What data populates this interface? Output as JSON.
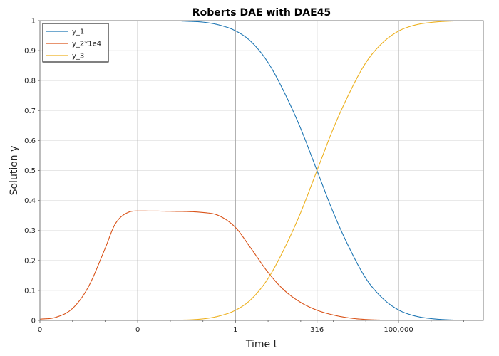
{
  "chart_data": {
    "type": "line",
    "title": "Roberts DAE with DAE45",
    "xlabel": "Time t",
    "ylabel": "Solution y",
    "x_scale": "log",
    "xlim": [
      1e-06,
      40000000
    ],
    "ylim": [
      0,
      1
    ],
    "x_ticks": [
      {
        "value": 1e-06,
        "label": "0"
      },
      {
        "value": 0.001,
        "label": "0"
      },
      {
        "value": 1,
        "label": "1"
      },
      {
        "value": 316,
        "label": "316"
      },
      {
        "value": 100000,
        "label": "100,000"
      }
    ],
    "y_ticks": [
      {
        "value": 0,
        "label": "0"
      },
      {
        "value": 0.1,
        "label": "0.1"
      },
      {
        "value": 0.2,
        "label": "0.2"
      },
      {
        "value": 0.3,
        "label": "0.3"
      },
      {
        "value": 0.4,
        "label": "0.4"
      },
      {
        "value": 0.5,
        "label": "0.5"
      },
      {
        "value": 0.6,
        "label": "0.6"
      },
      {
        "value": 0.7,
        "label": "0.7"
      },
      {
        "value": 0.8,
        "label": "0.8"
      },
      {
        "value": 0.9,
        "label": "0.9"
      },
      {
        "value": 1,
        "label": "1"
      }
    ],
    "grid": true,
    "legend_position": "top-left",
    "series": [
      {
        "name": "y_1",
        "color": "#1f77b4",
        "x": [
          1e-06,
          1e-05,
          0.0001,
          0.001,
          0.01,
          0.03,
          0.1,
          0.3,
          1,
          3,
          10,
          31.6,
          100,
          316,
          1000,
          3162,
          10000,
          31623,
          100000,
          316228,
          1000000,
          3162278,
          10000000,
          40000000
        ],
        "y": [
          1.0,
          1.0,
          1.0,
          1.0,
          1.0,
          0.998,
          0.995,
          0.986,
          0.966,
          0.93,
          0.86,
          0.76,
          0.64,
          0.5,
          0.36,
          0.24,
          0.14,
          0.075,
          0.035,
          0.015,
          0.006,
          0.002,
          0.0005,
          0.0001
        ]
      },
      {
        "name": "y_2*1e4",
        "color": "#d95319",
        "x": [
          1e-06,
          3e-06,
          1e-05,
          3e-05,
          0.0001,
          0.0002,
          0.0005,
          0.001,
          0.01,
          0.1,
          0.3,
          1,
          3,
          10,
          31.6,
          100,
          316,
          1000,
          3162,
          10000,
          31623,
          100000,
          1000000,
          10000000
        ],
        "y": [
          0.004,
          0.01,
          0.04,
          0.11,
          0.24,
          0.32,
          0.36,
          0.365,
          0.364,
          0.36,
          0.35,
          0.31,
          0.24,
          0.16,
          0.1,
          0.06,
          0.034,
          0.018,
          0.008,
          0.003,
          0.001,
          0.0003,
          0.0,
          0.0
        ]
      },
      {
        "name": "y_3",
        "color": "#edb120",
        "x": [
          1e-06,
          0.001,
          0.01,
          0.1,
          0.3,
          1,
          3,
          10,
          31.6,
          100,
          316,
          1000,
          3162,
          10000,
          31623,
          100000,
          316228,
          1000000,
          3162278,
          10000000,
          40000000
        ],
        "y": [
          0.0,
          0.0,
          0.0005,
          0.005,
          0.014,
          0.034,
          0.07,
          0.14,
          0.24,
          0.36,
          0.5,
          0.64,
          0.76,
          0.86,
          0.925,
          0.965,
          0.985,
          0.994,
          0.998,
          0.9995,
          1.0
        ]
      }
    ]
  }
}
